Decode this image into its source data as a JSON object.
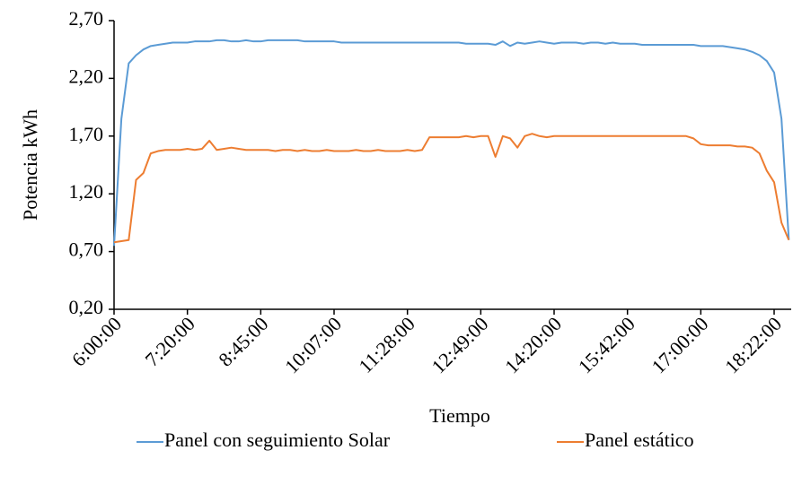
{
  "chart_data": {
    "type": "line",
    "x_label": "Tiempo",
    "y_label": "Potencia kWh",
    "categories": [
      "6:00:00",
      null,
      null,
      null,
      null,
      null,
      null,
      null,
      null,
      null,
      "7:20:00",
      null,
      null,
      null,
      null,
      null,
      null,
      null,
      null,
      null,
      "8:45:00",
      null,
      null,
      null,
      null,
      null,
      null,
      null,
      null,
      null,
      "10:07:00",
      null,
      null,
      null,
      null,
      null,
      null,
      null,
      null,
      null,
      "11:28:00",
      null,
      null,
      null,
      null,
      null,
      null,
      null,
      null,
      null,
      "12:49:00",
      null,
      null,
      null,
      null,
      null,
      null,
      null,
      null,
      null,
      "14:20:00",
      null,
      null,
      null,
      null,
      null,
      null,
      null,
      null,
      null,
      "15:42:00",
      null,
      null,
      null,
      null,
      null,
      null,
      null,
      null,
      null,
      "17:00:00",
      null,
      null,
      null,
      null,
      null,
      null,
      null,
      null,
      null,
      "18:22:00",
      null,
      null
    ],
    "series": [
      {
        "name": "Panel con seguimiento Solar",
        "color": "#5b9bd5",
        "values": [
          0.75,
          1.85,
          2.33,
          2.4,
          2.45,
          2.48,
          2.49,
          2.5,
          2.51,
          2.51,
          2.51,
          2.52,
          2.52,
          2.52,
          2.53,
          2.53,
          2.52,
          2.52,
          2.53,
          2.52,
          2.52,
          2.53,
          2.53,
          2.53,
          2.53,
          2.53,
          2.52,
          2.52,
          2.52,
          2.52,
          2.52,
          2.51,
          2.51,
          2.51,
          2.51,
          2.51,
          2.51,
          2.51,
          2.51,
          2.51,
          2.51,
          2.51,
          2.51,
          2.51,
          2.51,
          2.51,
          2.51,
          2.51,
          2.5,
          2.5,
          2.5,
          2.5,
          2.49,
          2.52,
          2.48,
          2.51,
          2.5,
          2.51,
          2.52,
          2.51,
          2.5,
          2.51,
          2.51,
          2.51,
          2.5,
          2.51,
          2.51,
          2.5,
          2.51,
          2.5,
          2.5,
          2.5,
          2.49,
          2.49,
          2.49,
          2.49,
          2.49,
          2.49,
          2.49,
          2.49,
          2.48,
          2.48,
          2.48,
          2.48,
          2.47,
          2.46,
          2.45,
          2.43,
          2.4,
          2.35,
          2.25,
          1.85,
          0.8
        ]
      },
      {
        "name": "Panel estático",
        "color": "#ed7d31",
        "values": [
          0.78,
          0.79,
          0.8,
          1.32,
          1.38,
          1.55,
          1.57,
          1.58,
          1.58,
          1.58,
          1.59,
          1.58,
          1.59,
          1.66,
          1.58,
          1.59,
          1.6,
          1.59,
          1.58,
          1.58,
          1.58,
          1.58,
          1.57,
          1.58,
          1.58,
          1.57,
          1.58,
          1.57,
          1.57,
          1.58,
          1.57,
          1.57,
          1.57,
          1.58,
          1.57,
          1.57,
          1.58,
          1.57,
          1.57,
          1.57,
          1.58,
          1.57,
          1.58,
          1.69,
          1.69,
          1.69,
          1.69,
          1.69,
          1.7,
          1.69,
          1.7,
          1.7,
          1.52,
          1.7,
          1.68,
          1.6,
          1.7,
          1.72,
          1.7,
          1.69,
          1.7,
          1.7,
          1.7,
          1.7,
          1.7,
          1.7,
          1.7,
          1.7,
          1.7,
          1.7,
          1.7,
          1.7,
          1.7,
          1.7,
          1.7,
          1.7,
          1.7,
          1.7,
          1.7,
          1.68,
          1.63,
          1.62,
          1.62,
          1.62,
          1.62,
          1.61,
          1.61,
          1.6,
          1.55,
          1.4,
          1.3,
          0.95,
          0.8
        ]
      }
    ],
    "ylim": [
      0.2,
      2.7
    ],
    "yticks": [
      {
        "value": 0.2,
        "label": "0,20"
      },
      {
        "value": 0.7,
        "label": "0,70"
      },
      {
        "value": 1.2,
        "label": "1,20"
      },
      {
        "value": 1.7,
        "label": "1,70"
      },
      {
        "value": 2.2,
        "label": "2,20"
      },
      {
        "value": 2.7,
        "label": "2,70"
      }
    ],
    "grid": false,
    "legend": "bottom"
  }
}
